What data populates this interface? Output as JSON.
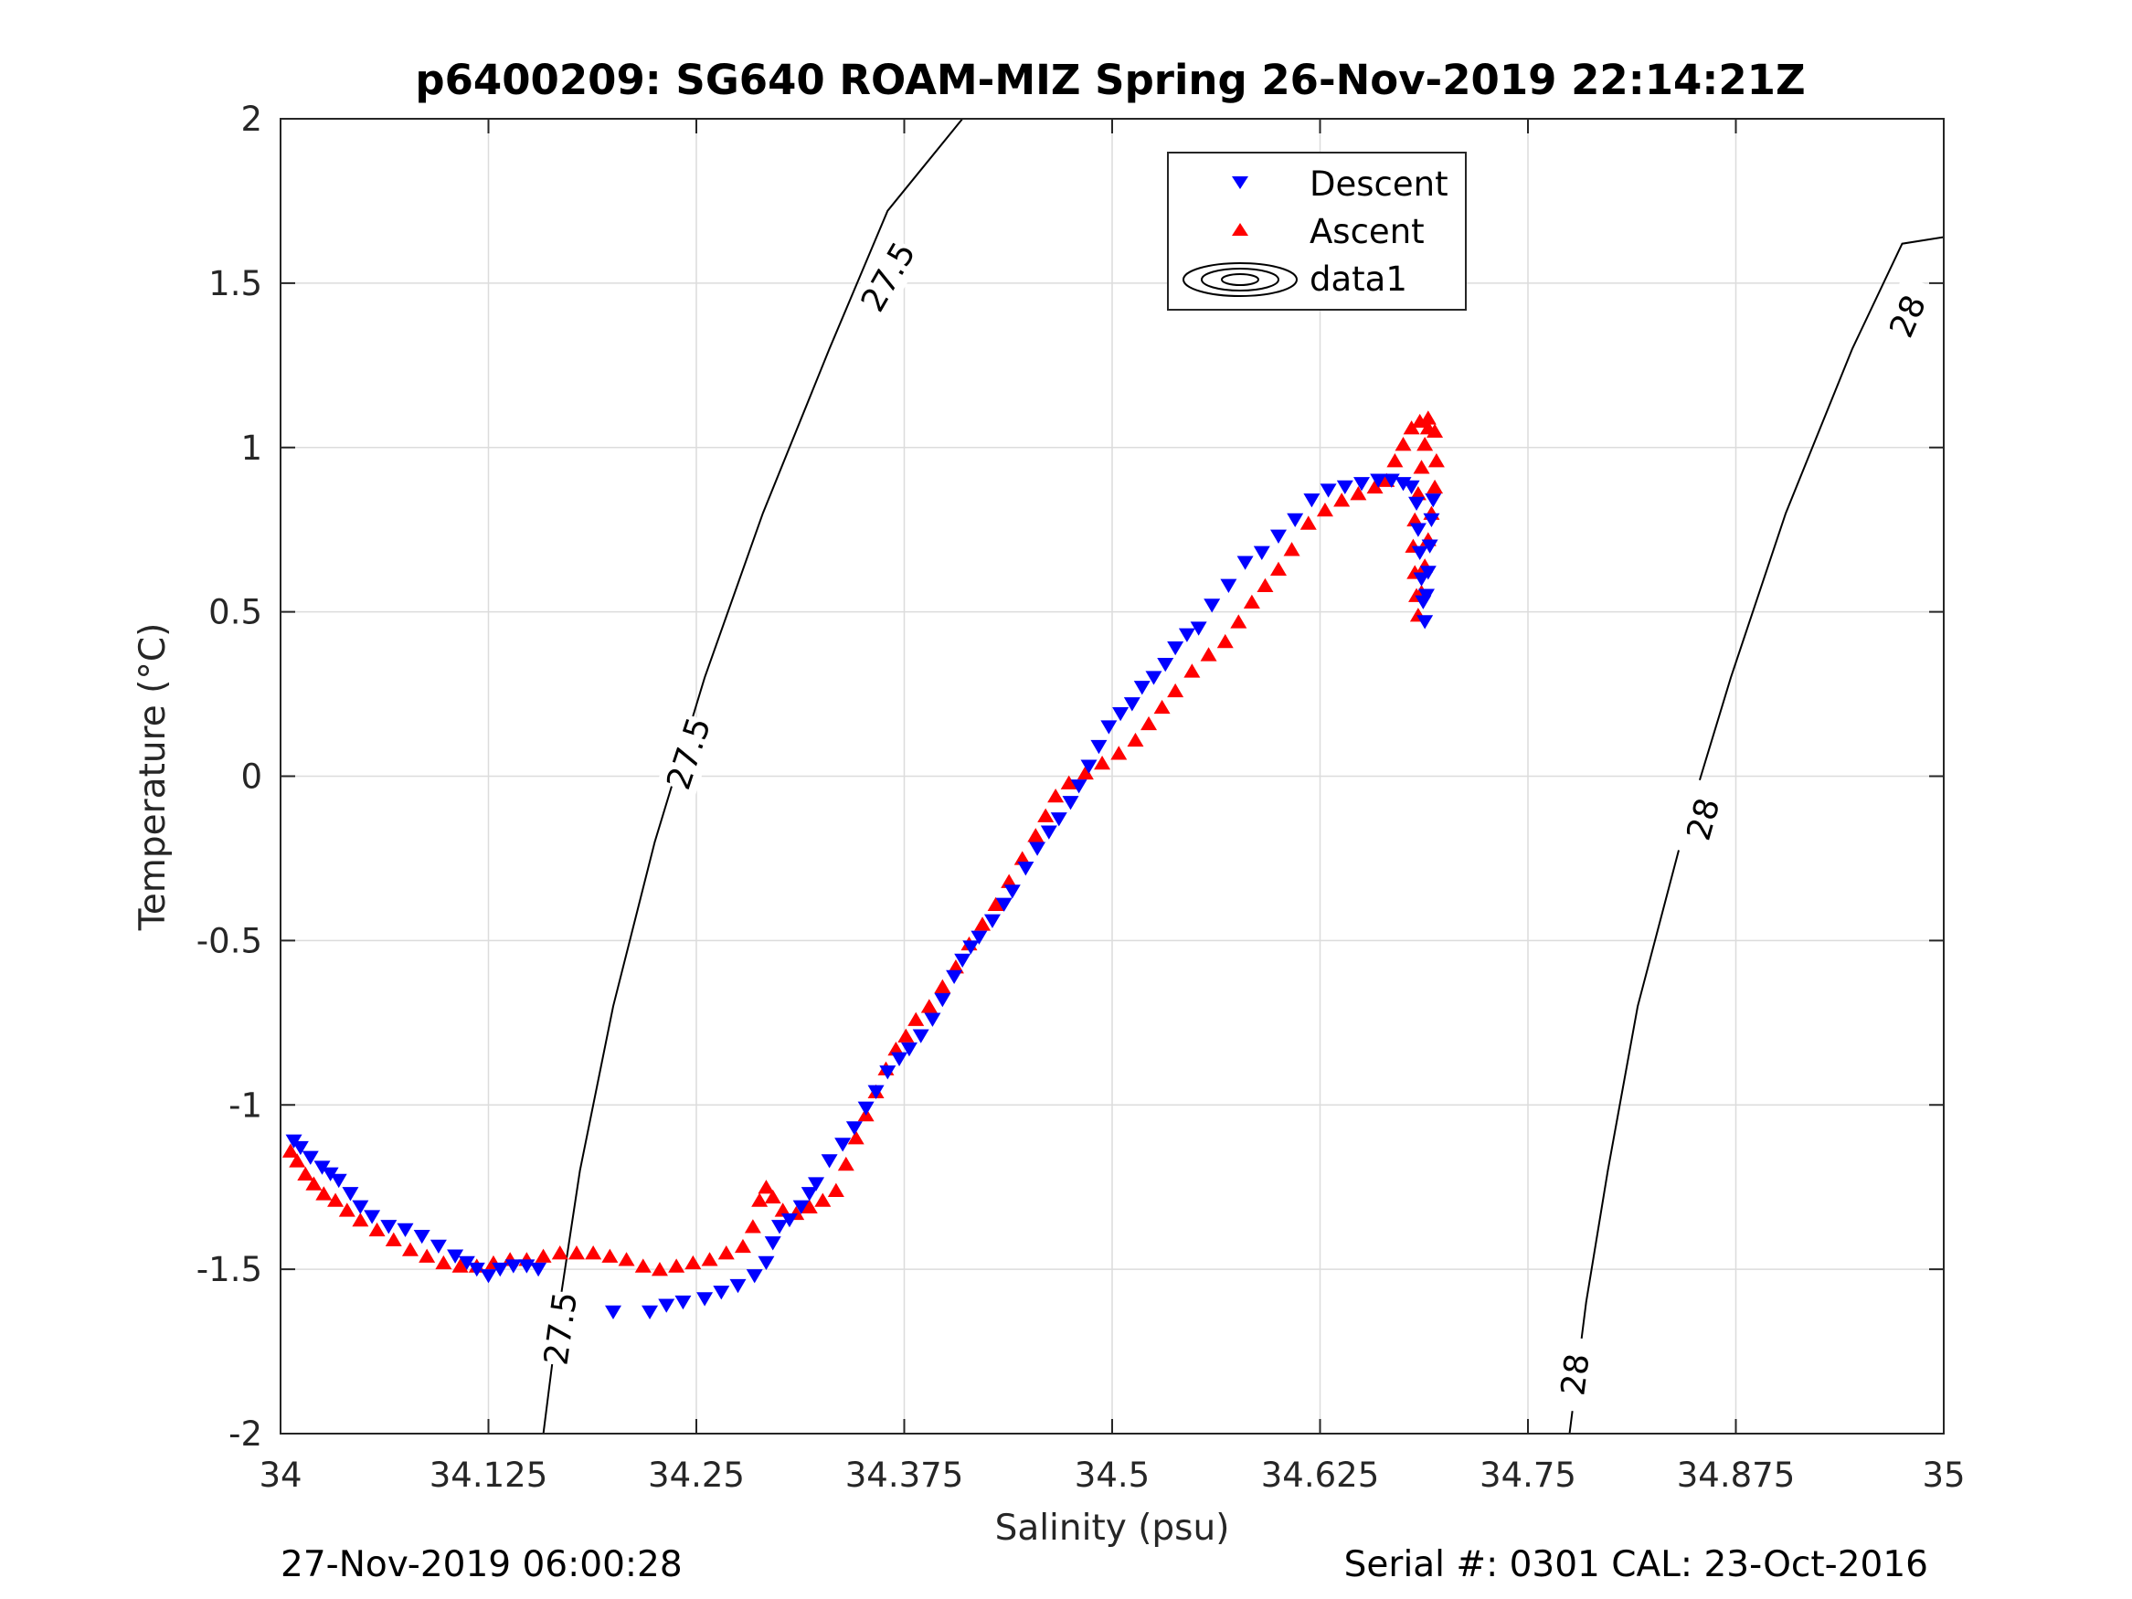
{
  "chart_data": {
    "type": "scatter",
    "title": "p6400209: SG640 ROAM-MIZ Spring 26-Nov-2019 22:14:21Z",
    "xlabel": "Salinity (psu)",
    "ylabel": "Temperature (°C)",
    "xlim": [
      34,
      35
    ],
    "ylim": [
      -2,
      2
    ],
    "x_ticks": [
      34,
      34.125,
      34.25,
      34.375,
      34.5,
      34.625,
      34.75,
      34.875,
      35
    ],
    "x_tick_labels": [
      "34",
      "34.125",
      "34.25",
      "34.375",
      "34.5",
      "34.625",
      "34.75",
      "34.875",
      "35"
    ],
    "y_ticks": [
      -2,
      -1.5,
      -1,
      -0.5,
      0,
      0.5,
      1,
      1.5,
      2
    ],
    "y_tick_labels": [
      "-2",
      "-1.5",
      "-1",
      "-0.5",
      "0",
      "0.5",
      "1",
      "1.5",
      "2"
    ],
    "grid": true,
    "legend_position": "top-center",
    "footer_left": "27-Nov-2019 06:00:28",
    "footer_right": "Serial #: 0301  CAL: 23-Oct-2016",
    "series": [
      {
        "name": "Descent",
        "marker": "triangle-down",
        "color": "#0000ff",
        "points": [
          [
            34.008,
            -1.11
          ],
          [
            34.012,
            -1.13
          ],
          [
            34.018,
            -1.16
          ],
          [
            34.025,
            -1.19
          ],
          [
            34.03,
            -1.21
          ],
          [
            34.035,
            -1.23
          ],
          [
            34.042,
            -1.27
          ],
          [
            34.048,
            -1.31
          ],
          [
            34.055,
            -1.34
          ],
          [
            34.065,
            -1.37
          ],
          [
            34.075,
            -1.38
          ],
          [
            34.085,
            -1.4
          ],
          [
            34.095,
            -1.43
          ],
          [
            34.105,
            -1.46
          ],
          [
            34.112,
            -1.48
          ],
          [
            34.118,
            -1.5
          ],
          [
            34.125,
            -1.52
          ],
          [
            34.132,
            -1.5
          ],
          [
            34.14,
            -1.49
          ],
          [
            34.148,
            -1.49
          ],
          [
            34.155,
            -1.5
          ],
          [
            34.2,
            -1.63
          ],
          [
            34.222,
            -1.63
          ],
          [
            34.232,
            -1.61
          ],
          [
            34.242,
            -1.6
          ],
          [
            34.255,
            -1.59
          ],
          [
            34.265,
            -1.57
          ],
          [
            34.275,
            -1.55
          ],
          [
            34.285,
            -1.52
          ],
          [
            34.292,
            -1.48
          ],
          [
            34.296,
            -1.42
          ],
          [
            34.3,
            -1.37
          ],
          [
            34.306,
            -1.35
          ],
          [
            34.313,
            -1.31
          ],
          [
            34.318,
            -1.27
          ],
          [
            34.322,
            -1.24
          ],
          [
            34.33,
            -1.17
          ],
          [
            34.338,
            -1.12
          ],
          [
            34.345,
            -1.07
          ],
          [
            34.352,
            -1.01
          ],
          [
            34.358,
            -0.96
          ],
          [
            34.365,
            -0.9
          ],
          [
            34.372,
            -0.86
          ],
          [
            34.378,
            -0.83
          ],
          [
            34.385,
            -0.79
          ],
          [
            34.392,
            -0.74
          ],
          [
            34.398,
            -0.68
          ],
          [
            34.405,
            -0.61
          ],
          [
            34.41,
            -0.56
          ],
          [
            34.415,
            -0.52
          ],
          [
            34.42,
            -0.49
          ],
          [
            34.428,
            -0.44
          ],
          [
            34.435,
            -0.39
          ],
          [
            34.44,
            -0.35
          ],
          [
            34.448,
            -0.28
          ],
          [
            34.455,
            -0.22
          ],
          [
            34.462,
            -0.17
          ],
          [
            34.468,
            -0.13
          ],
          [
            34.475,
            -0.08
          ],
          [
            34.48,
            -0.03
          ],
          [
            34.486,
            0.03
          ],
          [
            34.492,
            0.09
          ],
          [
            34.498,
            0.15
          ],
          [
            34.505,
            0.19
          ],
          [
            34.512,
            0.22
          ],
          [
            34.518,
            0.27
          ],
          [
            34.525,
            0.3
          ],
          [
            34.532,
            0.34
          ],
          [
            34.538,
            0.39
          ],
          [
            34.545,
            0.43
          ],
          [
            34.552,
            0.45
          ],
          [
            34.56,
            0.52
          ],
          [
            34.57,
            0.58
          ],
          [
            34.58,
            0.65
          ],
          [
            34.59,
            0.68
          ],
          [
            34.6,
            0.73
          ],
          [
            34.61,
            0.78
          ],
          [
            34.62,
            0.84
          ],
          [
            34.63,
            0.87
          ],
          [
            34.64,
            0.88
          ],
          [
            34.65,
            0.89
          ],
          [
            34.66,
            0.9
          ],
          [
            34.668,
            0.9
          ],
          [
            34.675,
            0.89
          ],
          [
            34.68,
            0.88
          ],
          [
            34.683,
            0.83
          ],
          [
            34.684,
            0.75
          ],
          [
            34.685,
            0.68
          ],
          [
            34.686,
            0.6
          ],
          [
            34.687,
            0.53
          ],
          [
            34.688,
            0.47
          ],
          [
            34.689,
            0.55
          ],
          [
            34.69,
            0.62
          ],
          [
            34.691,
            0.7
          ],
          [
            34.692,
            0.78
          ],
          [
            34.693,
            0.84
          ]
        ]
      },
      {
        "name": "Ascent",
        "marker": "triangle-up",
        "color": "#ff0000",
        "points": [
          [
            34.006,
            -1.14
          ],
          [
            34.01,
            -1.17
          ],
          [
            34.015,
            -1.21
          ],
          [
            34.02,
            -1.24
          ],
          [
            34.026,
            -1.27
          ],
          [
            34.033,
            -1.29
          ],
          [
            34.04,
            -1.32
          ],
          [
            34.048,
            -1.35
          ],
          [
            34.058,
            -1.38
          ],
          [
            34.068,
            -1.41
          ],
          [
            34.078,
            -1.44
          ],
          [
            34.088,
            -1.46
          ],
          [
            34.098,
            -1.48
          ],
          [
            34.108,
            -1.49
          ],
          [
            34.118,
            -1.49
          ],
          [
            34.128,
            -1.48
          ],
          [
            34.138,
            -1.47
          ],
          [
            34.148,
            -1.47
          ],
          [
            34.158,
            -1.46
          ],
          [
            34.168,
            -1.45
          ],
          [
            34.178,
            -1.45
          ],
          [
            34.188,
            -1.45
          ],
          [
            34.198,
            -1.46
          ],
          [
            34.208,
            -1.47
          ],
          [
            34.218,
            -1.49
          ],
          [
            34.228,
            -1.5
          ],
          [
            34.238,
            -1.49
          ],
          [
            34.248,
            -1.48
          ],
          [
            34.258,
            -1.47
          ],
          [
            34.268,
            -1.45
          ],
          [
            34.278,
            -1.43
          ],
          [
            34.284,
            -1.37
          ],
          [
            34.288,
            -1.29
          ],
          [
            34.292,
            -1.25
          ],
          [
            34.296,
            -1.28
          ],
          [
            34.302,
            -1.32
          ],
          [
            34.31,
            -1.33
          ],
          [
            34.318,
            -1.31
          ],
          [
            34.326,
            -1.29
          ],
          [
            34.334,
            -1.26
          ],
          [
            34.34,
            -1.18
          ],
          [
            34.346,
            -1.1
          ],
          [
            34.352,
            -1.03
          ],
          [
            34.358,
            -0.96
          ],
          [
            34.364,
            -0.89
          ],
          [
            34.37,
            -0.83
          ],
          [
            34.376,
            -0.79
          ],
          [
            34.382,
            -0.74
          ],
          [
            34.39,
            -0.7
          ],
          [
            34.398,
            -0.64
          ],
          [
            34.406,
            -0.58
          ],
          [
            34.414,
            -0.51
          ],
          [
            34.422,
            -0.45
          ],
          [
            34.43,
            -0.39
          ],
          [
            34.438,
            -0.32
          ],
          [
            34.446,
            -0.25
          ],
          [
            34.454,
            -0.18
          ],
          [
            34.46,
            -0.12
          ],
          [
            34.466,
            -0.06
          ],
          [
            34.474,
            -0.02
          ],
          [
            34.484,
            0.01
          ],
          [
            34.494,
            0.04
          ],
          [
            34.504,
            0.07
          ],
          [
            34.514,
            0.11
          ],
          [
            34.522,
            0.16
          ],
          [
            34.53,
            0.21
          ],
          [
            34.538,
            0.26
          ],
          [
            34.548,
            0.32
          ],
          [
            34.558,
            0.37
          ],
          [
            34.568,
            0.41
          ],
          [
            34.576,
            0.47
          ],
          [
            34.584,
            0.53
          ],
          [
            34.592,
            0.58
          ],
          [
            34.6,
            0.63
          ],
          [
            34.608,
            0.69
          ],
          [
            34.618,
            0.77
          ],
          [
            34.628,
            0.81
          ],
          [
            34.638,
            0.84
          ],
          [
            34.648,
            0.86
          ],
          [
            34.658,
            0.88
          ],
          [
            34.665,
            0.9
          ],
          [
            34.67,
            0.96
          ],
          [
            34.675,
            1.01
          ],
          [
            34.68,
            1.06
          ],
          [
            34.685,
            1.08
          ],
          [
            34.69,
            1.09
          ],
          [
            34.694,
            1.05
          ],
          [
            34.695,
            0.96
          ],
          [
            34.694,
            0.88
          ],
          [
            34.692,
            0.8
          ],
          [
            34.69,
            0.72
          ],
          [
            34.688,
            0.64
          ],
          [
            34.686,
            0.56
          ],
          [
            34.684,
            0.49
          ],
          [
            34.683,
            0.55
          ],
          [
            34.682,
            0.62
          ],
          [
            34.681,
            0.7
          ],
          [
            34.682,
            0.78
          ],
          [
            34.684,
            0.86
          ],
          [
            34.686,
            0.94
          ],
          [
            34.688,
            1.01
          ],
          [
            34.69,
            1.06
          ]
        ]
      }
    ],
    "contours": [
      {
        "level_label": "27.5",
        "points": [
          [
            34.158,
            -2
          ],
          [
            34.168,
            -1.6
          ],
          [
            34.18,
            -1.2
          ],
          [
            34.2,
            -0.7
          ],
          [
            34.225,
            -0.2
          ],
          [
            34.255,
            0.3
          ],
          [
            34.29,
            0.8
          ],
          [
            34.33,
            1.3
          ],
          [
            34.365,
            1.72
          ],
          [
            34.41,
            2.0
          ]
        ],
        "labels": [
          [
            34.168,
            -1.68
          ],
          [
            34.245,
            0.07
          ],
          [
            34.365,
            1.52
          ]
        ]
      },
      {
        "level_label": "28",
        "points": [
          [
            34.775,
            -2
          ],
          [
            34.785,
            -1.6
          ],
          [
            34.798,
            -1.2
          ],
          [
            34.816,
            -0.7
          ],
          [
            34.842,
            -0.2
          ],
          [
            34.872,
            0.3
          ],
          [
            34.905,
            0.8
          ],
          [
            34.945,
            1.3
          ],
          [
            34.975,
            1.62
          ],
          [
            35.0,
            1.64
          ]
        ],
        "labels": [
          [
            34.778,
            -1.82
          ],
          [
            34.855,
            -0.13
          ],
          [
            34.978,
            1.4
          ]
        ]
      }
    ],
    "legend": [
      {
        "label": "Descent",
        "marker": "triangle-down",
        "color": "#0000ff"
      },
      {
        "label": "Ascent",
        "marker": "triangle-up",
        "color": "#ff0000"
      },
      {
        "label": "data1",
        "marker": "contour",
        "color": "#000000"
      }
    ]
  }
}
